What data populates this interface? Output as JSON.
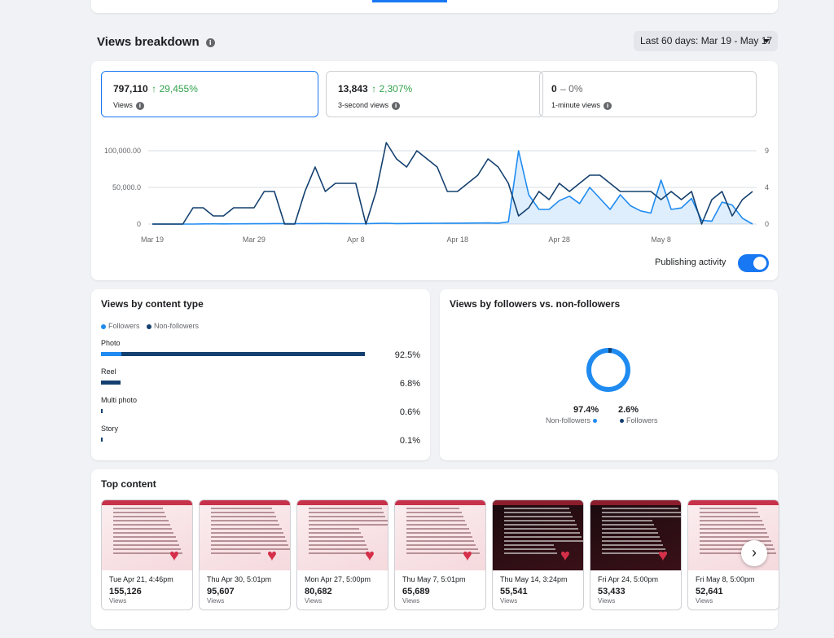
{
  "section": {
    "title": "Views breakdown",
    "date_range": "Last 60 days: Mar 19 - May 17"
  },
  "metrics": [
    {
      "value": "797,110",
      "delta": "↑ 29,455%",
      "label": "Views"
    },
    {
      "value": "13,843",
      "delta": "↑ 2,307%",
      "label": "3-second views"
    },
    {
      "value": "0",
      "delta": "– 0%",
      "label": "1-minute views"
    }
  ],
  "chart_data": {
    "type": "line",
    "x_tick_labels": [
      "Mar 19",
      "Mar 29",
      "Apr 8",
      "Apr 18",
      "Apr 28",
      "May 8"
    ],
    "y_left_ticks": [
      "0",
      "50,000.0",
      "100,000.00"
    ],
    "y_right_ticks": [
      "0",
      "4",
      "9"
    ],
    "y_left_range": [
      0,
      100000
    ],
    "y_right_range": [
      0,
      9
    ],
    "days": 60,
    "series": [
      {
        "values": [
          0,
          0,
          0,
          0,
          0,
          200,
          300,
          200,
          300,
          300,
          400,
          500,
          700,
          700,
          600,
          700,
          700,
          800,
          700,
          700,
          600,
          600,
          900,
          1100,
          700,
          800,
          900,
          1000,
          1100,
          1200,
          1200,
          1300,
          1400,
          1500,
          1200,
          3000,
          100000,
          40000,
          20000,
          20000,
          32000,
          38000,
          28000,
          50000,
          35000,
          20000,
          40000,
          25000,
          18000,
          15000,
          60000,
          20000,
          22000,
          35000,
          5000,
          4000,
          30000,
          26000,
          8000,
          0
        ],
        "color": "#1f8bf0",
        "axis": "left",
        "fill": true
      },
      {
        "values": [
          0,
          0,
          0,
          0,
          2,
          2,
          1,
          1,
          2,
          2,
          2,
          4,
          4,
          0,
          0,
          4,
          7,
          4,
          5,
          5,
          5,
          0,
          4,
          10,
          8,
          7,
          9,
          8,
          7,
          4,
          4,
          5,
          6,
          8,
          7,
          5,
          1,
          2,
          4,
          3,
          5,
          4,
          5,
          6,
          6,
          5,
          4,
          4,
          4,
          4,
          3,
          4,
          3,
          4,
          0,
          3,
          4,
          1,
          3,
          4
        ],
        "color": "#14406f",
        "axis": "right",
        "fill": false
      }
    ]
  },
  "publishing": {
    "label": "Publishing activity"
  },
  "content_type": {
    "title": "Views by content type",
    "legend": [
      "Followers",
      "Non-followers"
    ],
    "rows": [
      {
        "label": "Photo",
        "pct": "92.5%",
        "value": 92.5,
        "followers_pct": 2.6
      },
      {
        "label": "Reel",
        "pct": "6.8%",
        "value": 6.8,
        "followers_pct": 0
      },
      {
        "label": "Multi photo",
        "pct": "0.6%",
        "value": 0.6,
        "followers_pct": 0
      },
      {
        "label": "Story",
        "pct": "0.1%",
        "value": 0.1,
        "followers_pct": 0
      }
    ]
  },
  "followers_split": {
    "title": "Views by followers vs. non-followers",
    "non_followers": {
      "pct": "97.4%",
      "label": "Non-followers",
      "value": 97.4
    },
    "followers": {
      "pct": "2.6%",
      "label": "Followers",
      "value": 2.6
    }
  },
  "top_content": {
    "title": "Top content",
    "items": [
      {
        "date": "Tue Apr 21, 4:46pm",
        "views": "155,126",
        "views_label": "Views",
        "theme": "light"
      },
      {
        "date": "Thu Apr 30, 5:01pm",
        "views": "95,607",
        "views_label": "Views",
        "theme": "light"
      },
      {
        "date": "Mon Apr 27, 5:00pm",
        "views": "80,682",
        "views_label": "Views",
        "theme": "light"
      },
      {
        "date": "Thu May 7, 5:01pm",
        "views": "65,689",
        "views_label": "Views",
        "theme": "light"
      },
      {
        "date": "Thu May 14, 3:24pm",
        "views": "55,541",
        "views_label": "Views",
        "theme": "dark"
      },
      {
        "date": "Fri Apr 24, 5:00pm",
        "views": "53,433",
        "views_label": "Views",
        "theme": "dark"
      },
      {
        "date": "Fri May 8, 5:00pm",
        "views": "52,641",
        "views_label": "Views",
        "theme": "light"
      }
    ]
  },
  "colors": {
    "accent": "#1877f2",
    "followers": "#1f8bf0",
    "non_followers": "#14406f",
    "positive": "#31a24c"
  },
  "icons": {
    "info": "info-icon",
    "caret": "caret-down-icon",
    "next": "chevron-right-icon"
  }
}
